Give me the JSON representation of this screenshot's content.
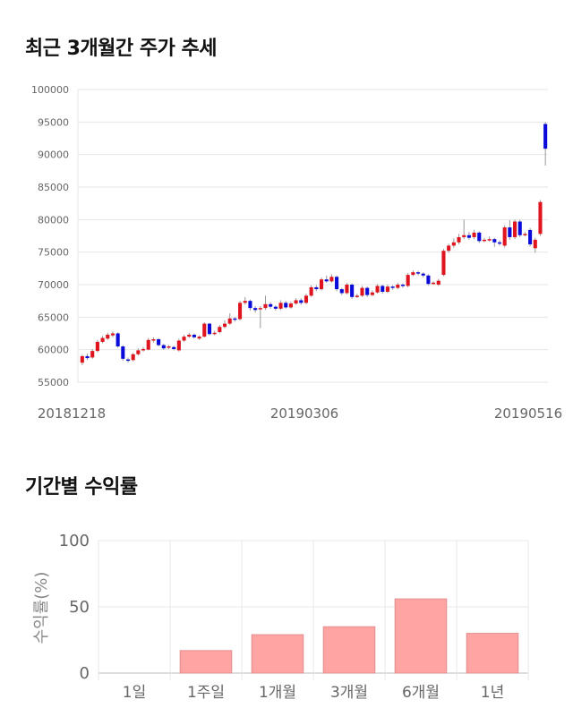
{
  "sections": {
    "price_title": "최근 3개월간 주가 추세",
    "returns_title": "기간별 수익률"
  },
  "chart_data": [
    {
      "type": "candlestick",
      "title": "최근 3개월간 주가 추세",
      "ylim": [
        55000,
        100000
      ],
      "y_ticks": [
        "100000",
        "95000",
        "90000",
        "85000",
        "80000",
        "75000",
        "70000",
        "65000",
        "60000",
        "55000"
      ],
      "x_labels": [
        "20181218",
        "20190306",
        "20190516"
      ],
      "grid": true,
      "colors": {
        "up": "#e0141e",
        "down": "#0a0adb",
        "wick": "#999999"
      },
      "candles": [
        [
          58000,
          59000,
          57600,
          59200
        ],
        [
          59000,
          58700,
          58400,
          59400
        ],
        [
          58800,
          59800,
          58600,
          60100
        ],
        [
          59800,
          61200,
          59600,
          61500
        ],
        [
          61200,
          61800,
          61000,
          62100
        ],
        [
          61700,
          62300,
          61500,
          62600
        ],
        [
          62200,
          62500,
          61900,
          62800
        ],
        [
          62500,
          60500,
          60300,
          62700
        ],
        [
          60500,
          58600,
          58300,
          60700
        ],
        [
          58500,
          58300,
          58000,
          58800
        ],
        [
          58400,
          59300,
          58200,
          59500
        ],
        [
          59300,
          59900,
          59100,
          60200
        ],
        [
          59900,
          60100,
          59700,
          60400
        ],
        [
          60000,
          61500,
          59900,
          61800
        ],
        [
          61400,
          61600,
          61100,
          61900
        ],
        [
          61600,
          60700,
          60500,
          61800
        ],
        [
          60700,
          60200,
          60000,
          60900
        ],
        [
          60300,
          60500,
          60100,
          60700
        ],
        [
          60400,
          60100,
          59900,
          60600
        ],
        [
          59900,
          61400,
          59700,
          61700
        ],
        [
          61400,
          62000,
          61200,
          62300
        ],
        [
          62000,
          62300,
          61800,
          62600
        ],
        [
          62300,
          61900,
          61700,
          62500
        ],
        [
          61700,
          62000,
          61500,
          62200
        ],
        [
          62000,
          64000,
          61900,
          64200
        ],
        [
          64000,
          62400,
          62200,
          64100
        ],
        [
          62400,
          62600,
          62200,
          62900
        ],
        [
          62700,
          63500,
          62500,
          63800
        ],
        [
          63500,
          64000,
          63300,
          64500
        ],
        [
          64000,
          64800,
          63800,
          65600
        ],
        [
          64800,
          64600,
          64300,
          65000
        ],
        [
          64700,
          67200,
          64500,
          67500
        ],
        [
          67200,
          67500,
          66900,
          68100
        ],
        [
          67500,
          66400,
          66000,
          67700
        ],
        [
          66400,
          66100,
          65700,
          66700
        ],
        [
          66200,
          66400,
          63300,
          66700
        ],
        [
          66400,
          67000,
          66100,
          68300
        ],
        [
          67000,
          66600,
          66300,
          67300
        ],
        [
          66600,
          66300,
          66000,
          66800
        ],
        [
          66300,
          67200,
          66100,
          67600
        ],
        [
          67200,
          66500,
          66300,
          67500
        ],
        [
          66500,
          67100,
          66300,
          67400
        ],
        [
          67100,
          67600,
          66900,
          67900
        ],
        [
          67600,
          67200,
          66900,
          67900
        ],
        [
          67200,
          68300,
          67000,
          68600
        ],
        [
          68300,
          69600,
          68100,
          69900
        ],
        [
          69600,
          69300,
          69000,
          69900
        ],
        [
          69300,
          70800,
          69100,
          71100
        ],
        [
          70800,
          70500,
          70300,
          71400
        ],
        [
          70500,
          71200,
          70300,
          71600
        ],
        [
          71200,
          69300,
          69000,
          71400
        ],
        [
          69300,
          68700,
          68400,
          69500
        ],
        [
          68700,
          70000,
          68500,
          70300
        ],
        [
          70000,
          68100,
          67800,
          70200
        ],
        [
          68100,
          68300,
          67900,
          68600
        ],
        [
          68300,
          69500,
          68100,
          69800
        ],
        [
          69500,
          68400,
          68100,
          69700
        ],
        [
          68400,
          68800,
          68200,
          69100
        ],
        [
          68800,
          69800,
          68600,
          70100
        ],
        [
          69800,
          68900,
          68600,
          70000
        ],
        [
          68900,
          69700,
          68700,
          70000
        ],
        [
          69700,
          69500,
          69200,
          69900
        ],
        [
          69500,
          70000,
          69300,
          70300
        ],
        [
          70000,
          69800,
          69500,
          70200
        ],
        [
          69800,
          71500,
          69600,
          71800
        ],
        [
          71500,
          71900,
          71300,
          72200
        ],
        [
          71900,
          71700,
          71400,
          72100
        ],
        [
          71700,
          71400,
          71100,
          71900
        ],
        [
          71400,
          70100,
          69900,
          71600
        ],
        [
          70200,
          70300,
          70000,
          70500
        ],
        [
          70000,
          70600,
          69800,
          70900
        ],
        [
          71500,
          75200,
          71300,
          75500
        ],
        [
          75200,
          76000,
          74900,
          76300
        ],
        [
          76000,
          76500,
          75700,
          77100
        ],
        [
          76500,
          77300,
          76200,
          77800
        ],
        [
          77300,
          77600,
          77000,
          80000
        ],
        [
          77600,
          77200,
          76900,
          78100
        ],
        [
          77300,
          78000,
          77000,
          78400
        ],
        [
          78000,
          76700,
          76400,
          78200
        ],
        [
          76700,
          76900,
          76500,
          77200
        ],
        [
          76900,
          77000,
          76600,
          77400
        ],
        [
          77000,
          76500,
          75800,
          77200
        ],
        [
          76500,
          76300,
          76000,
          76800
        ],
        [
          76000,
          78800,
          75700,
          79100
        ],
        [
          78800,
          77300,
          76900,
          79900
        ],
        [
          77300,
          79700,
          77000,
          80000
        ],
        [
          79700,
          77600,
          77300,
          80000
        ],
        [
          77600,
          77800,
          77400,
          78100
        ],
        [
          78400,
          76200,
          75900,
          78700
        ],
        [
          75600,
          76900,
          74900,
          77200
        ],
        [
          77800,
          82700,
          77500,
          83000
        ],
        [
          94700,
          90900,
          88300,
          95000
        ]
      ]
    },
    {
      "type": "bar",
      "title": "기간별 수익률",
      "ylabel": "수익률(%)",
      "ylim": [
        0,
        100
      ],
      "y_ticks": [
        "0",
        "50",
        "100"
      ],
      "categories": [
        "1일",
        "1주일",
        "1개월",
        "3개월",
        "6개월",
        "1년"
      ],
      "values": [
        0,
        17,
        29,
        35,
        56,
        30
      ],
      "grid": true,
      "colors": {
        "bar_fill": "#ffa3a3",
        "bar_stroke": "#e58e8e"
      }
    }
  ]
}
